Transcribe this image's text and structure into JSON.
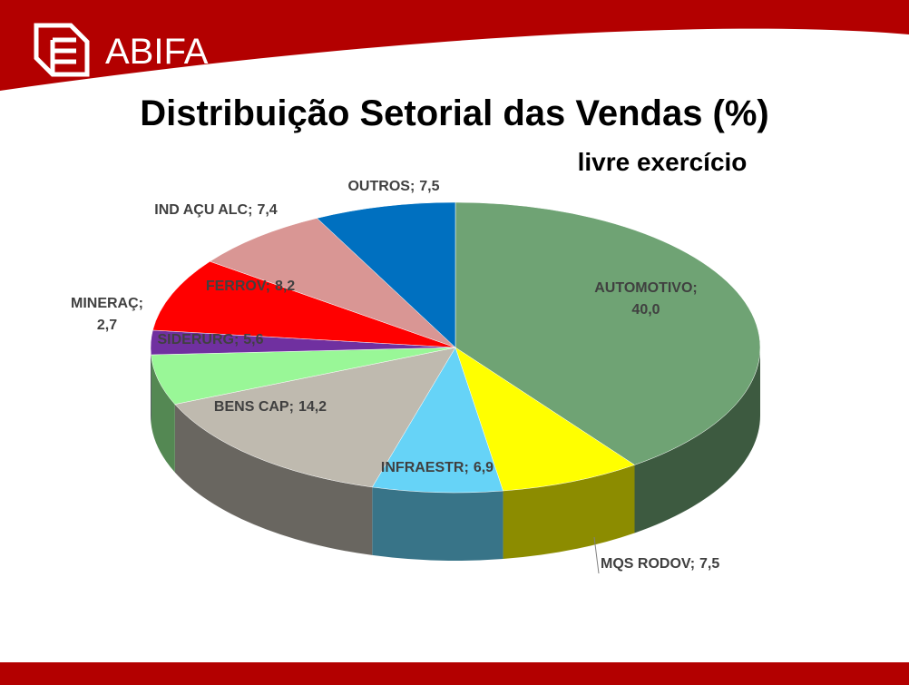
{
  "brand": "ABIFA",
  "chart_data": {
    "type": "pie3d",
    "title": "Distribuição Setorial das Vendas (%)",
    "subtitle": "livre exercício",
    "categories": [
      "AUTOMOTIVO",
      "MQS RODOV",
      "INFRAESTR",
      "BENS CAP",
      "SIDERURG",
      "MINERAÇ",
      "FERROV",
      "IND AÇU ALC",
      "OUTROS"
    ],
    "values": [
      40.0,
      7.5,
      6.9,
      14.2,
      5.6,
      2.7,
      8.2,
      7.4,
      7.5
    ],
    "value_labels": [
      "40,0",
      "7,5",
      "6,9",
      "14,2",
      "5,6",
      "2,7",
      "8,2",
      "7,4",
      "7,5"
    ],
    "label_separator": ";",
    "colors": [
      "#6fa374",
      "#ffff00",
      "#66d3f7",
      "#bfbaaf",
      "#99f797",
      "#7030a0",
      "#ff0000",
      "#d99694",
      "#0070c0"
    ]
  }
}
